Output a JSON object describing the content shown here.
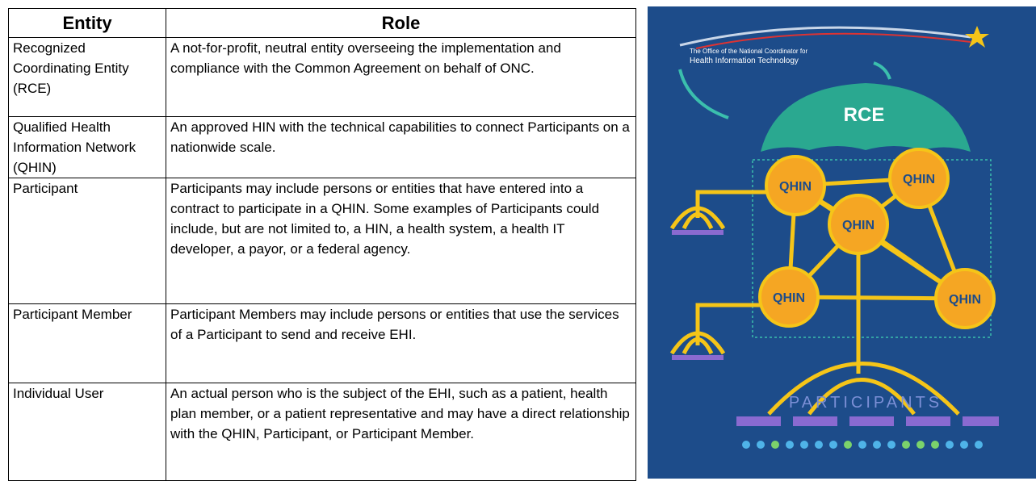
{
  "table": {
    "header": [
      "Entity",
      "Role"
    ],
    "rows": [
      [
        "Recognized Coordinating Entity (RCE)",
        "A not-for-profit, neutral entity overseeing the implementation and compliance with the Common Agreement on behalf of ONC."
      ],
      [
        "Qualified Health Information Network (QHIN)",
        "An approved HIN with the technical capabilities to connect Participants on a nationwide scale."
      ],
      [
        "Participant",
        "Participants may include persons or entities that have entered into a contract to participate in a QHIN. Some examples of Participants could include, but are not limited to, a HIN, a health system, a health IT developer, a payor, or a federal agency."
      ],
      [
        "Participant Member",
        "Participant Members may include persons or entities that use the services of a Participant to send and receive EHI."
      ],
      [
        "Individual User",
        "An actual person who is the subject of the EHI, such as a patient, health plan member, or a patient representative and may have a direct relationship with the QHIN, Participant, or Participant Member."
      ]
    ]
  },
  "figure": {
    "agency": [
      "The Office of the National Coordinator for",
      "Health Information Technology"
    ],
    "rce": "RCE",
    "qhins": [
      "QHIN",
      "QHIN",
      "QHIN",
      "QHIN",
      "QHIN"
    ],
    "participants": "PARTICIPANTS"
  }
}
